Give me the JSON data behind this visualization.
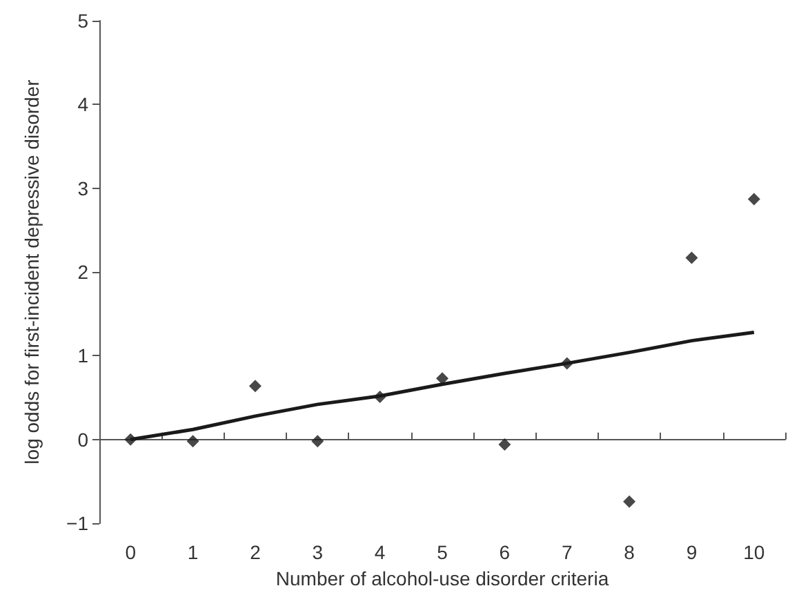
{
  "chart_data": {
    "type": "scatter",
    "xlabel": "Number of alcohol-use disorder criteria",
    "ylabel": "log odds for first-incident depressive disorder",
    "categories": [
      "0",
      "1",
      "2",
      "3",
      "4",
      "5",
      "6",
      "7",
      "8",
      "9",
      "10"
    ],
    "series": [
      {
        "color": "#1a1a1a",
        "marker": "diamond",
        "values": [
          0,
          -0.02,
          0.64,
          -0.02,
          0.51,
          0.73,
          -0.06,
          0.91,
          -0.74,
          2.17,
          2.87
        ]
      },
      {
        "type": "line",
        "color": "#1a1a1a",
        "marker": "none",
        "values": [
          0,
          0.12,
          0.28,
          0.42,
          0.52,
          0.66,
          0.79,
          0.91,
          1.04,
          1.18,
          1.28
        ]
      }
    ],
    "ylim": [
      -1,
      5
    ],
    "yticks": [
      {
        "value": -1,
        "label": "−1"
      },
      0,
      1,
      2,
      3,
      4,
      5
    ]
  }
}
